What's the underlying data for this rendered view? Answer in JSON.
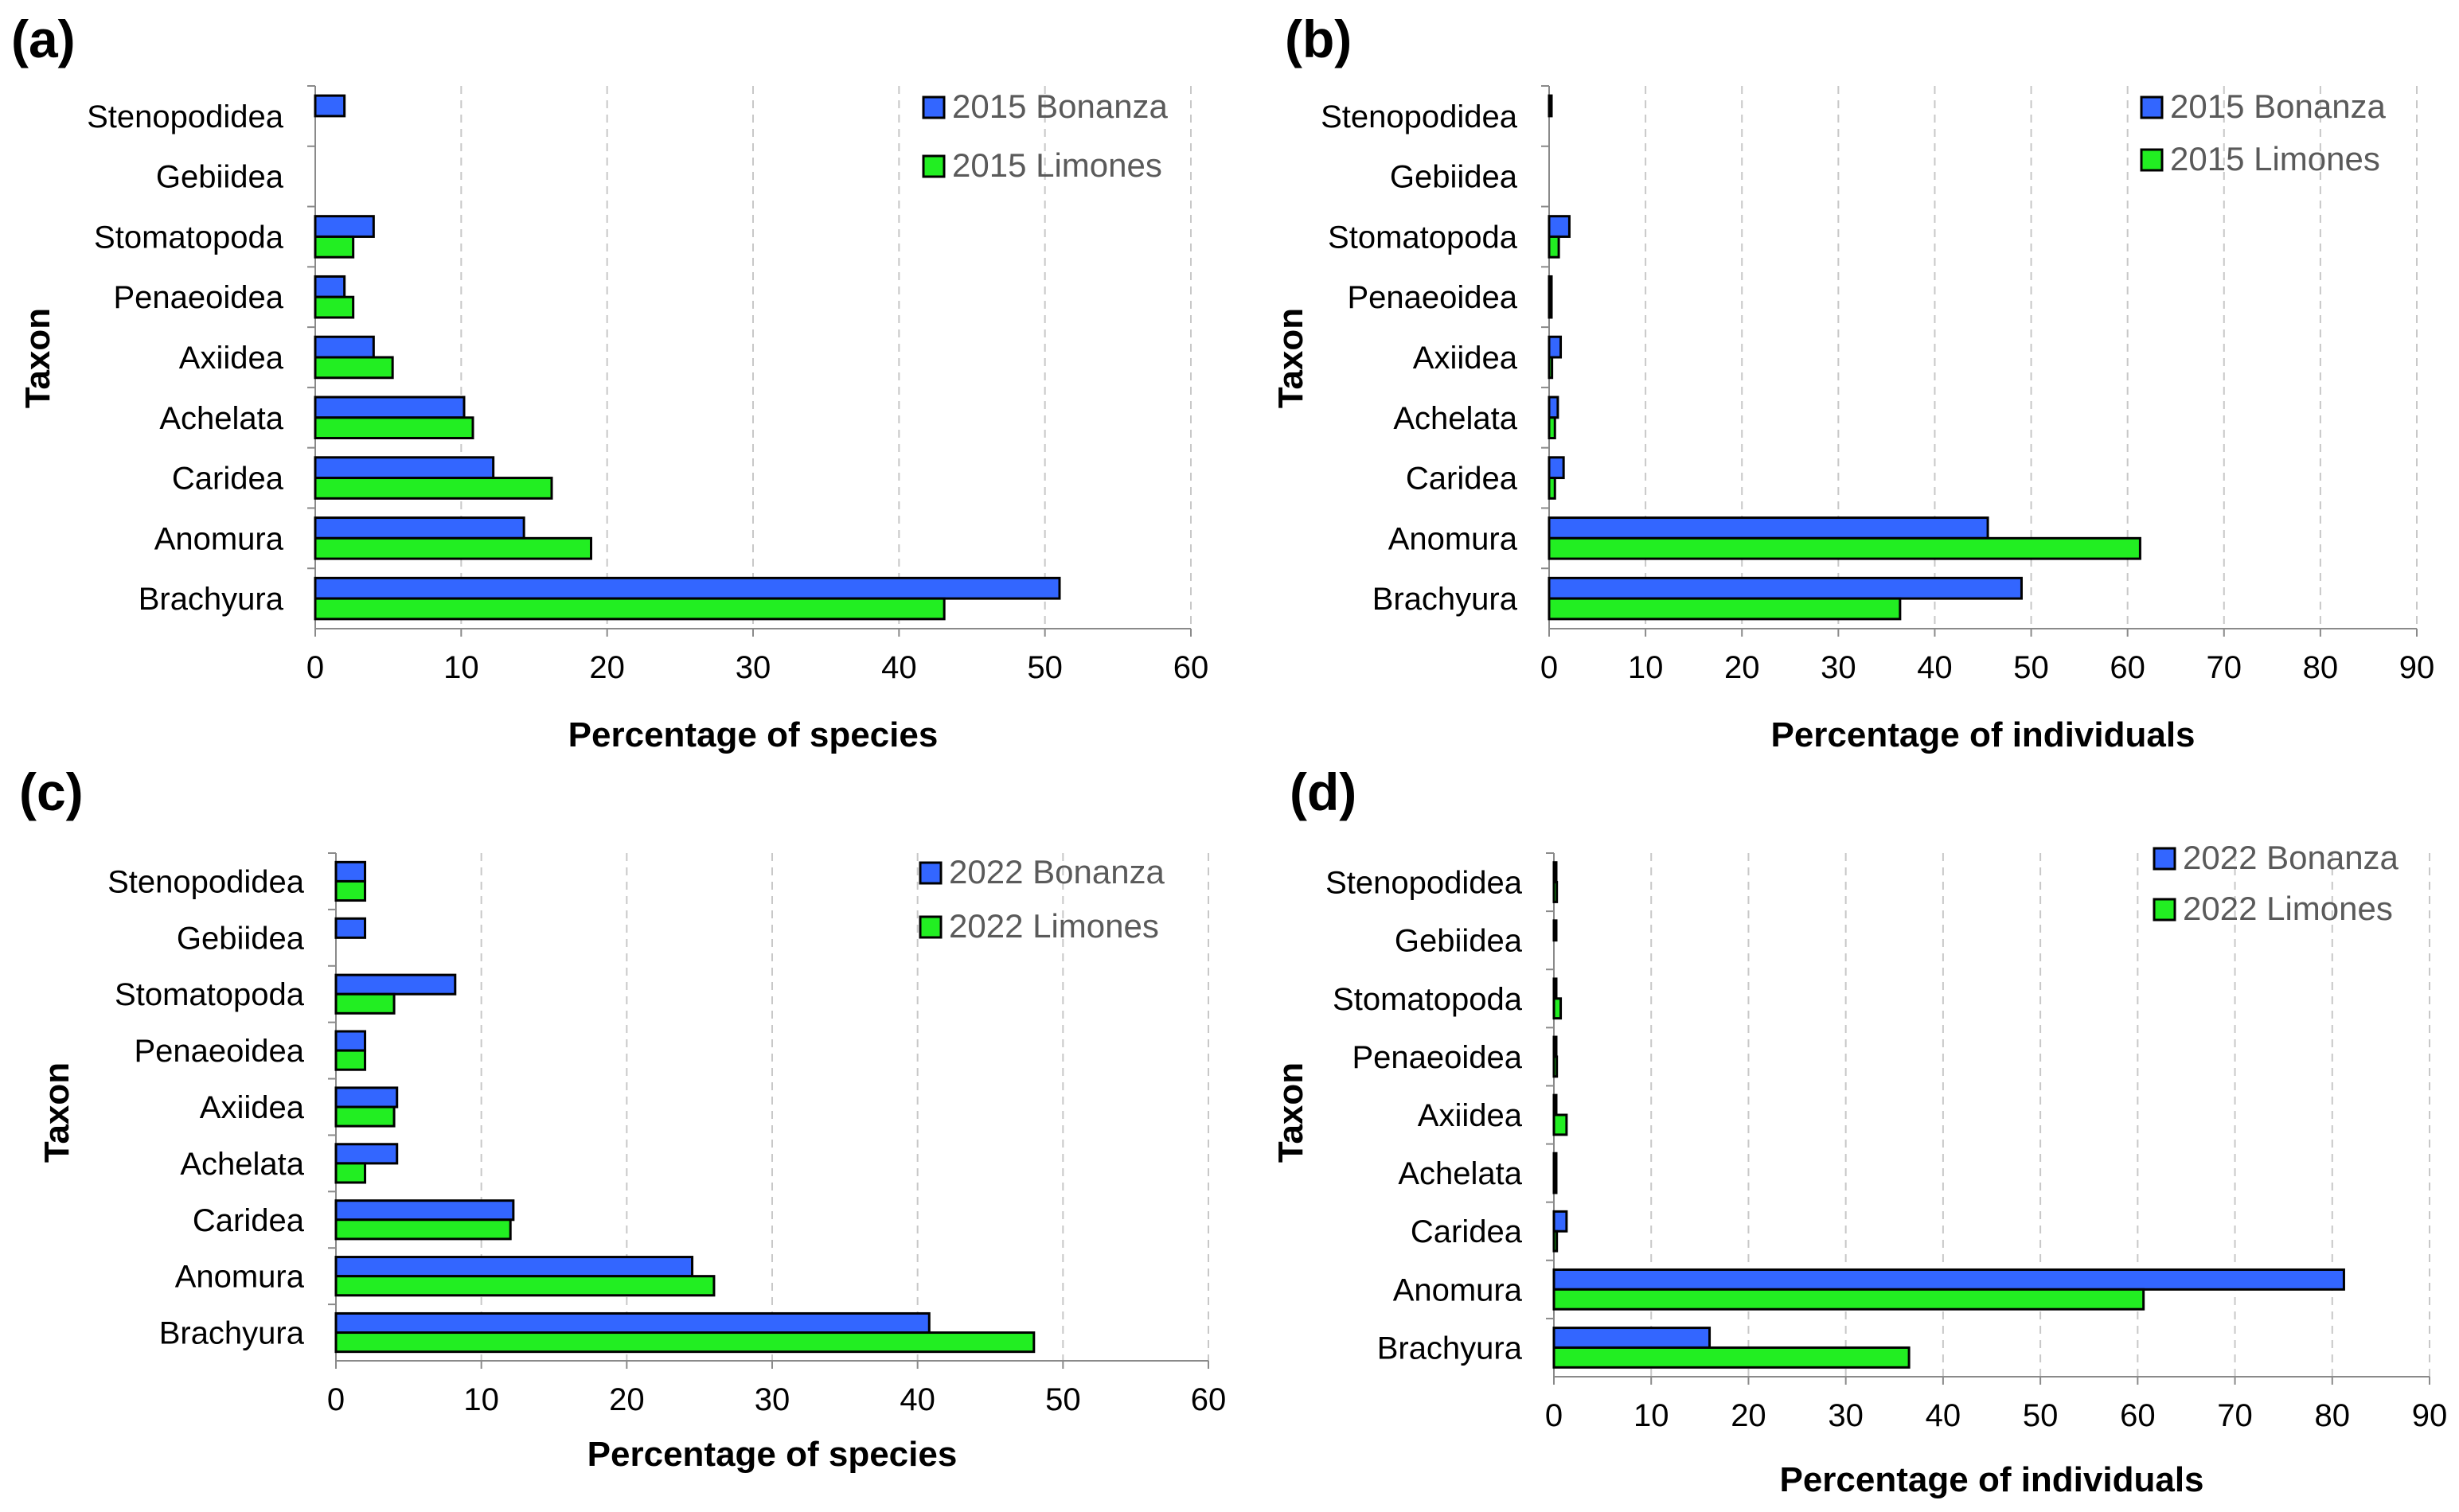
{
  "colors": {
    "series1": "#3366ff",
    "series2": "#22ee22",
    "outline": "#000000",
    "grid": "#c8c8c8"
  },
  "chart_data": [
    {
      "panel": "(a)",
      "type": "bar",
      "orientation": "horizontal",
      "categories": [
        "Stenopodidea",
        "Gebiidea",
        "Stomatopoda",
        "Penaeoidea",
        "Axiidea",
        "Achelata",
        "Caridea",
        "Anomura",
        "Brachyura"
      ],
      "series": [
        {
          "name": "2015 Bonanza",
          "values": [
            2,
            0,
            4,
            2,
            4,
            10.2,
            12.2,
            14.3,
            51
          ]
        },
        {
          "name": "2015 Limones",
          "values": [
            0,
            0,
            2.6,
            2.6,
            5.3,
            10.8,
            16.2,
            18.9,
            43.1
          ]
        }
      ],
      "xlabel": "Percentage of species",
      "ylabel": "Taxon",
      "xlim": [
        0,
        60
      ],
      "xticks": [
        "0",
        "10",
        "20",
        "30",
        "40",
        "50",
        "60"
      ],
      "legend": "top-right"
    },
    {
      "panel": "(b)",
      "type": "bar",
      "orientation": "horizontal",
      "categories": [
        "Stenopodidea",
        "Gebiidea",
        "Stomatopoda",
        "Penaeoidea",
        "Axiidea",
        "Achelata",
        "Caridea",
        "Anomura",
        "Brachyura"
      ],
      "series": [
        {
          "name": "2015 Bonanza",
          "values": [
            0.2,
            0,
            2.1,
            0.2,
            1.2,
            0.9,
            1.5,
            45.5,
            49
          ]
        },
        {
          "name": "2015 Limones",
          "values": [
            0,
            0,
            1,
            0.2,
            0.3,
            0.6,
            0.6,
            61.3,
            36.4
          ]
        }
      ],
      "xlabel": "Percentage of individuals",
      "ylabel": "Taxon",
      "xlim": [
        0,
        90
      ],
      "xticks": [
        "0",
        "10",
        "20",
        "30",
        "40",
        "50",
        "60",
        "70",
        "80",
        "90"
      ],
      "legend": "top-right"
    },
    {
      "panel": "(c)",
      "type": "bar",
      "orientation": "horizontal",
      "categories": [
        "Stenopodidea",
        "Gebiidea",
        "Stomatopoda",
        "Penaeoidea",
        "Axiidea",
        "Achelata",
        "Caridea",
        "Anomura",
        "Brachyura"
      ],
      "series": [
        {
          "name": "2022 Bonanza",
          "values": [
            2,
            2,
            8.2,
            2,
            4.2,
            4.2,
            12.2,
            24.5,
            40.8
          ]
        },
        {
          "name": "2022 Limones",
          "values": [
            2,
            0,
            4,
            2,
            4,
            2,
            12,
            26,
            48
          ]
        }
      ],
      "xlabel": "Percentage of species",
      "ylabel": "Taxon",
      "xlim": [
        0,
        60
      ],
      "xticks": [
        "0",
        "10",
        "20",
        "30",
        "40",
        "50",
        "60"
      ],
      "legend": "top-right"
    },
    {
      "panel": "(d)",
      "type": "bar",
      "orientation": "horizontal",
      "categories": [
        "Stenopodidea",
        "Gebiidea",
        "Stomatopoda",
        "Penaeoidea",
        "Axiidea",
        "Achelata",
        "Caridea",
        "Anomura",
        "Brachyura"
      ],
      "series": [
        {
          "name": "2022 Bonanza",
          "values": [
            0.2,
            0.2,
            0.2,
            0.2,
            0.2,
            0.2,
            1.3,
            81.2,
            16
          ]
        },
        {
          "name": "2022 Limones",
          "values": [
            0.3,
            0,
            0.7,
            0.3,
            1.3,
            0.2,
            0.3,
            60.6,
            36.5
          ]
        }
      ],
      "xlabel": "Percentage of individuals",
      "ylabel": "Taxon",
      "xlim": [
        0,
        90
      ],
      "xticks": [
        "0",
        "10",
        "20",
        "30",
        "40",
        "50",
        "60",
        "70",
        "80",
        "90"
      ],
      "legend": "top-right"
    }
  ]
}
